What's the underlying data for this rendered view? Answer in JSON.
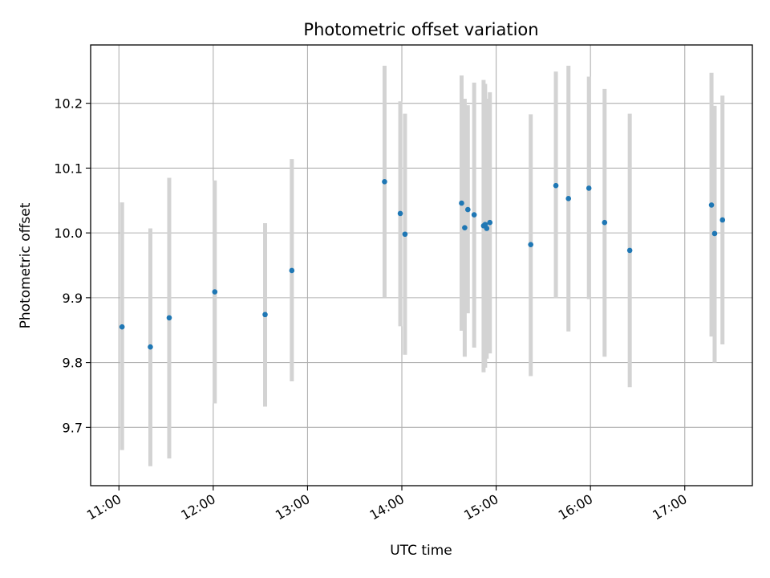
{
  "chart_data": {
    "type": "scatter",
    "title": "Photometric offset variation",
    "xlabel": "UTC time",
    "ylabel": "Photometric offset",
    "x_ticks": [
      "11:00",
      "12:00",
      "13:00",
      "14:00",
      "15:00",
      "16:00",
      "17:00"
    ],
    "y_ticks": [
      "9.7",
      "9.8",
      "9.9",
      "10.0",
      "10.1",
      "10.2"
    ],
    "xlim": [
      "10:42",
      "17:43"
    ],
    "ylim": [
      9.61,
      10.29
    ],
    "grid": true,
    "point_color": "#1f77b4",
    "errorbar_color": "#d3d3d3",
    "points": [
      {
        "x": "11:02",
        "y": 9.855,
        "low": 9.665,
        "high": 10.047
      },
      {
        "x": "11:20",
        "y": 9.824,
        "low": 9.64,
        "high": 10.007
      },
      {
        "x": "11:32",
        "y": 9.869,
        "low": 9.652,
        "high": 10.085
      },
      {
        "x": "12:01",
        "y": 9.909,
        "low": 9.737,
        "high": 10.081
      },
      {
        "x": "12:33",
        "y": 9.874,
        "low": 9.732,
        "high": 10.015
      },
      {
        "x": "12:50",
        "y": 9.942,
        "low": 9.771,
        "high": 10.114
      },
      {
        "x": "13:49",
        "y": 10.079,
        "low": 9.9,
        "high": 10.258
      },
      {
        "x": "13:59",
        "y": 10.03,
        "low": 9.856,
        "high": 10.203
      },
      {
        "x": "14:02",
        "y": 9.998,
        "low": 9.812,
        "high": 10.184
      },
      {
        "x": "14:38",
        "y": 10.046,
        "low": 9.849,
        "high": 10.243
      },
      {
        "x": "14:40",
        "y": 10.008,
        "low": 9.809,
        "high": 10.207
      },
      {
        "x": "14:42",
        "y": 10.036,
        "low": 9.876,
        "high": 10.197
      },
      {
        "x": "14:46",
        "y": 10.028,
        "low": 9.823,
        "high": 10.232
      },
      {
        "x": "14:52",
        "y": 10.011,
        "low": 9.785,
        "high": 10.236
      },
      {
        "x": "14:53",
        "y": 10.013,
        "low": 9.792,
        "high": 10.23
      },
      {
        "x": "14:54",
        "y": 10.007,
        "low": 9.806,
        "high": 10.207
      },
      {
        "x": "14:56",
        "y": 10.016,
        "low": 9.814,
        "high": 10.217
      },
      {
        "x": "15:22",
        "y": 9.982,
        "low": 9.779,
        "high": 10.183
      },
      {
        "x": "15:38",
        "y": 10.073,
        "low": 9.899,
        "high": 10.249
      },
      {
        "x": "15:46",
        "y": 10.053,
        "low": 9.848,
        "high": 10.258
      },
      {
        "x": "15:59",
        "y": 10.069,
        "low": 9.898,
        "high": 10.241
      },
      {
        "x": "16:09",
        "y": 10.016,
        "low": 9.809,
        "high": 10.222
      },
      {
        "x": "16:25",
        "y": 9.973,
        "low": 9.762,
        "high": 10.184
      },
      {
        "x": "17:17",
        "y": 10.043,
        "low": 9.84,
        "high": 10.247
      },
      {
        "x": "17:19",
        "y": 9.999,
        "low": 9.8,
        "high": 10.196
      },
      {
        "x": "17:24",
        "y": 10.02,
        "low": 9.828,
        "high": 10.212
      }
    ]
  }
}
